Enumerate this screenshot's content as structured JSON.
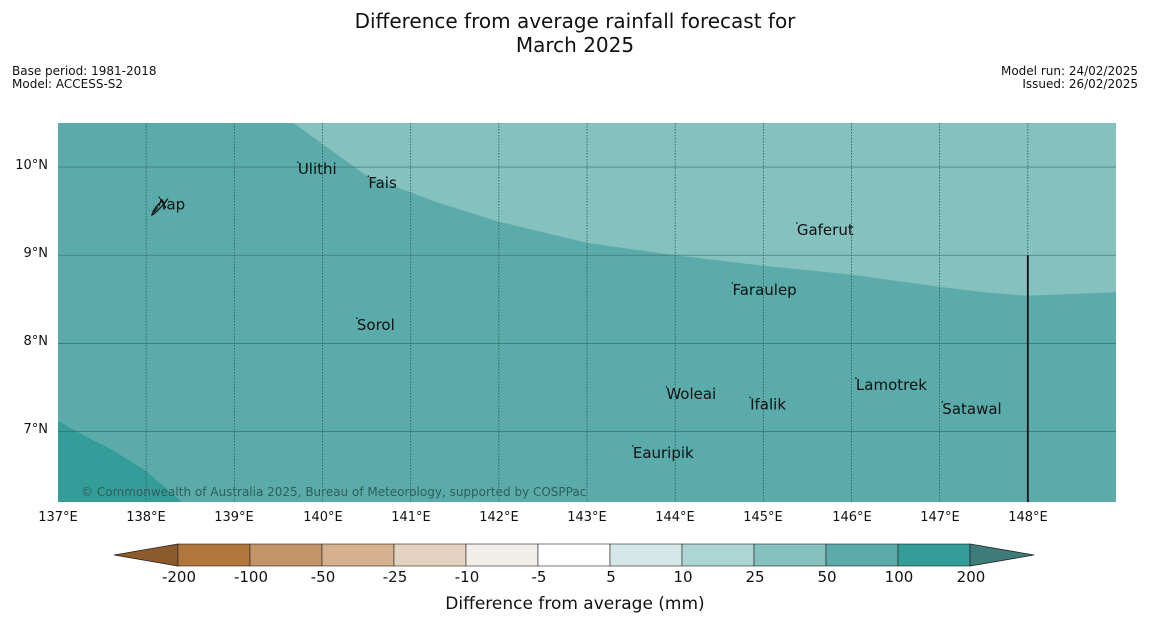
{
  "title_line1": "Difference from average rainfall forecast for",
  "title_line2": "March 2025",
  "meta_left": {
    "base_period": "Base period: 1981-2018",
    "model": "Model: ACCESS-S2"
  },
  "meta_right": {
    "model_run": "Model run: 24/02/2025",
    "issued": "Issued: 26/02/2025"
  },
  "map": {
    "lon_range": [
      137,
      149
    ],
    "lat_range": [
      6.2,
      10.5
    ],
    "lat_ticks": [
      {
        "value": 10,
        "label": "10°N"
      },
      {
        "value": 9,
        "label": "9°N"
      },
      {
        "value": 8,
        "label": "8°N"
      },
      {
        "value": 7,
        "label": "7°N"
      }
    ],
    "lon_ticks": [
      {
        "value": 137,
        "label": "137°E"
      },
      {
        "value": 138,
        "label": "138°E"
      },
      {
        "value": 139,
        "label": "139°E"
      },
      {
        "value": 140,
        "label": "140°E"
      },
      {
        "value": 141,
        "label": "141°E"
      },
      {
        "value": 142,
        "label": "142°E"
      },
      {
        "value": 143,
        "label": "143°E"
      },
      {
        "value": 144,
        "label": "144°E"
      },
      {
        "value": 145,
        "label": "145°E"
      },
      {
        "value": 146,
        "label": "146°E"
      },
      {
        "value": 147,
        "label": "147°E"
      },
      {
        "value": 148,
        "label": "148°E"
      }
    ],
    "regions": [
      {
        "category": "25 to 50",
        "color": "#85c1bf",
        "boundary": [
          [
            139.67,
            10.5
          ],
          [
            140.5,
            9.9
          ],
          [
            141.3,
            9.6
          ],
          [
            142.0,
            9.38
          ],
          [
            143.0,
            9.14
          ],
          [
            144.0,
            9.0
          ],
          [
            145.0,
            8.88
          ],
          [
            146.0,
            8.78
          ],
          [
            147.0,
            8.64
          ],
          [
            147.5,
            8.58
          ],
          [
            148.0,
            8.54
          ],
          [
            148.5,
            8.56
          ],
          [
            149.0,
            8.58
          ],
          [
            149,
            10.5
          ]
        ]
      },
      {
        "category": "100 to 200",
        "color": "#349c99",
        "boundary": [
          [
            137,
            6.2
          ],
          [
            137,
            7.12
          ],
          [
            137.3,
            6.95
          ],
          [
            137.6,
            6.8
          ],
          [
            138.0,
            6.55
          ],
          [
            138.35,
            6.25
          ],
          [
            138.4,
            6.2
          ]
        ]
      }
    ],
    "background_category": "50 to 100",
    "background_color": "#5aabaa",
    "boundary_line": {
      "lon": 148.0,
      "lat_from": 6.2,
      "lat_to": 9.0
    },
    "places": [
      {
        "name": "Yap",
        "lon": 138.15,
        "lat": 9.52
      },
      {
        "name": "Ulithi",
        "lon": 139.72,
        "lat": 9.92
      },
      {
        "name": "Fais",
        "lon": 140.52,
        "lat": 9.76
      },
      {
        "name": "Gaferut",
        "lon": 145.38,
        "lat": 9.23
      },
      {
        "name": "Faraulep",
        "lon": 144.65,
        "lat": 8.55
      },
      {
        "name": "Sorol",
        "lon": 140.39,
        "lat": 8.15
      },
      {
        "name": "Lamotrek",
        "lon": 146.05,
        "lat": 7.47
      },
      {
        "name": "Satawal",
        "lon": 147.03,
        "lat": 7.2
      },
      {
        "name": "Woleai",
        "lon": 143.9,
        "lat": 7.37
      },
      {
        "name": "Ifalik",
        "lon": 144.85,
        "lat": 7.25
      },
      {
        "name": "Eauripik",
        "lon": 143.52,
        "lat": 6.7
      }
    ],
    "copyright": "© Commonwealth of Australia 2025, Bureau of Meteorology, supported by COSPPac"
  },
  "colorbar": {
    "title": "Difference from average (mm)",
    "labels": [
      "-200",
      "-100",
      "-50",
      "-25",
      "-10",
      "-5",
      "5",
      "10",
      "25",
      "50",
      "100",
      "200"
    ],
    "colors": [
      "#8c5a2b",
      "#b0773d",
      "#c39467",
      "#d5b18f",
      "#e5d2c1",
      "#f1eeea",
      "#ffffff",
      "#d5e8e7",
      "#acd5d4",
      "#85c1bf",
      "#5aabaa",
      "#349c99",
      "#3f7c79"
    ]
  }
}
